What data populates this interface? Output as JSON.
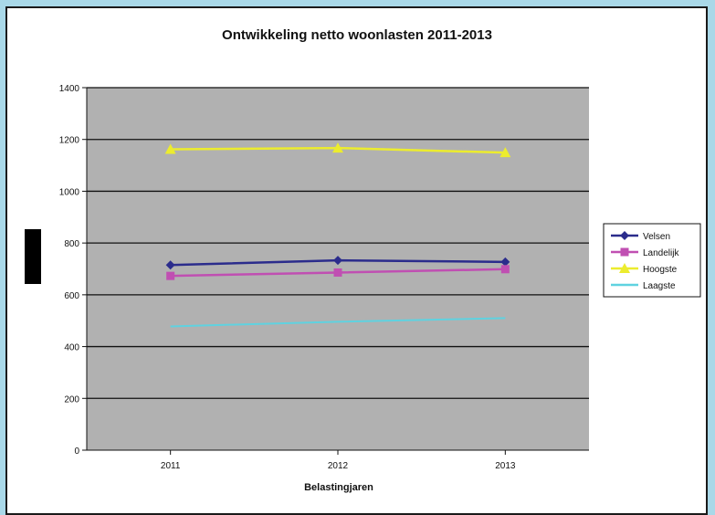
{
  "chart_data": {
    "type": "line",
    "title": "Ontwikkeling netto woonlasten 2011-2013",
    "xlabel": "Belastingjaren",
    "ylabel": "",
    "categories": [
      "2011",
      "2012",
      "2013"
    ],
    "ylim": [
      0,
      1400
    ],
    "yticks": [
      "0",
      "200",
      "400",
      "600",
      "800",
      "1000",
      "1200",
      "1400"
    ],
    "grid": true,
    "legend_position": "right",
    "series": [
      {
        "name": "Velsen",
        "values": [
          715,
          733,
          727
        ],
        "color": "#2b2c8c",
        "marker": "diamond"
      },
      {
        "name": "Landelijk",
        "values": [
          673,
          686,
          699
        ],
        "color": "#c04fb2",
        "marker": "square"
      },
      {
        "name": "Hoogste",
        "values": [
          1162,
          1167,
          1149
        ],
        "color": "#ecec2e",
        "marker": "triangle"
      },
      {
        "name": "Laagste",
        "values": [
          478,
          496,
          510
        ],
        "color": "#5fd2e0",
        "marker": "none"
      }
    ],
    "colors": {
      "plot_background": "#b1b1b1",
      "gridline": "#111111"
    }
  }
}
